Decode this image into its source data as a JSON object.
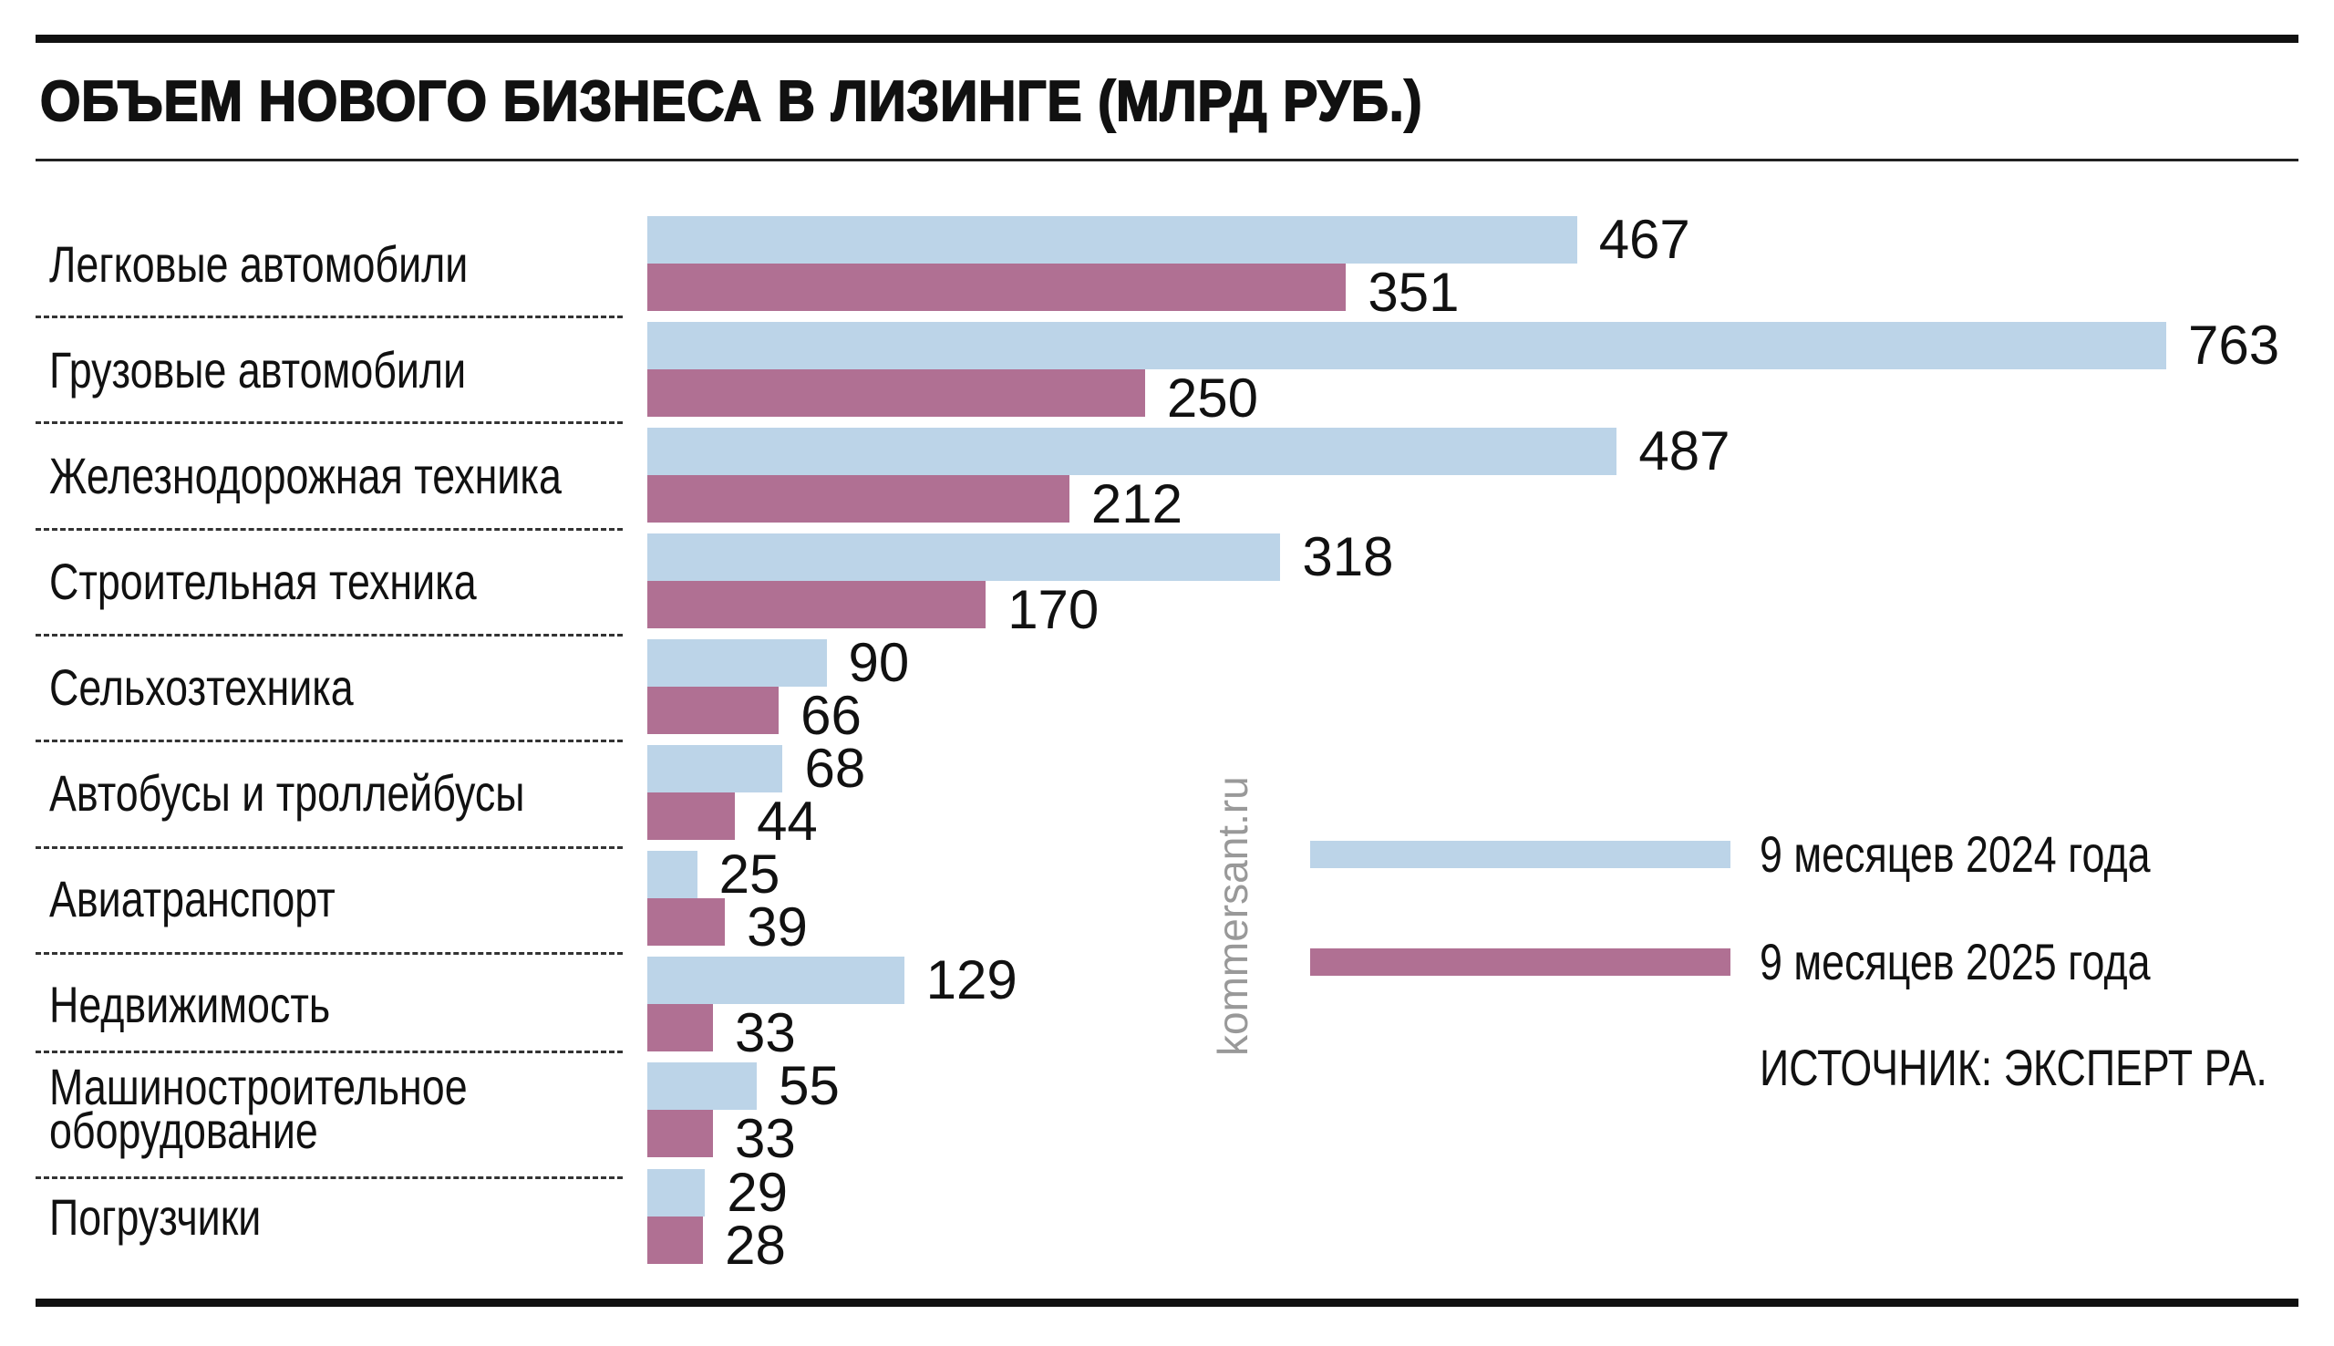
{
  "chart_data": {
    "type": "bar",
    "orientation": "horizontal",
    "title": "ОБЪЕМ НОВОГО БИЗНЕСА В ЛИЗИНГЕ (МЛРД РУБ.)",
    "categories": [
      "Легковые автомобили",
      "Грузовые автомобили",
      "Железнодорожная техника",
      "Строительная техника",
      "Сельхозтехника",
      "Автобусы и троллейбусы",
      "Авиатранспорт",
      "Недвижимость",
      "Машиностроительное оборудование",
      "Погрузчики"
    ],
    "category_lines": [
      [
        "Легковые автомобили"
      ],
      [
        "Грузовые автомобили"
      ],
      [
        "Железнодорожная техника"
      ],
      [
        "Строительная техника"
      ],
      [
        "Сельхозтехника"
      ],
      [
        "Автобусы и троллейбусы"
      ],
      [
        "Авиатранспорт"
      ],
      [
        "Недвижимость"
      ],
      [
        "Машиностроительное",
        "оборудование"
      ],
      [
        "Погрузчики"
      ]
    ],
    "series": [
      {
        "name": "9 месяцев 2024 года",
        "color": "#bcd4e8",
        "values": [
          467,
          763,
          487,
          318,
          90,
          68,
          25,
          129,
          55,
          29
        ]
      },
      {
        "name": "9 месяцев 2025 года",
        "color": "#b07093",
        "values": [
          351,
          250,
          212,
          170,
          66,
          44,
          39,
          33,
          33,
          28
        ]
      }
    ],
    "xlim": [
      0,
      763
    ],
    "grid": false,
    "legend_placement": "right",
    "data_labels": true
  },
  "source": "ИСТОЧНИК: ЭКСПЕРТ РА.",
  "watermark": "kommersant.ru"
}
